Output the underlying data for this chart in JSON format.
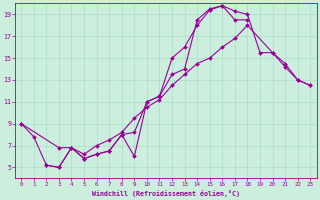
{
  "xlabel": "Windchill (Refroidissement éolien,°C)",
  "background_color": "#cceedd",
  "line_color": "#990099",
  "grid_color": "#aaddcc",
  "xlim": [
    -0.5,
    23.5
  ],
  "ylim": [
    4,
    20
  ],
  "xticks": [
    0,
    1,
    2,
    3,
    4,
    5,
    6,
    7,
    8,
    9,
    10,
    11,
    12,
    13,
    14,
    15,
    16,
    17,
    18,
    19,
    20,
    21,
    22,
    23
  ],
  "yticks": [
    5,
    7,
    9,
    11,
    13,
    15,
    17,
    19
  ],
  "series1_x": [
    0,
    1,
    2,
    3,
    4,
    5,
    6,
    7,
    8,
    9,
    10,
    11,
    12,
    13,
    14,
    15,
    16,
    17,
    18
  ],
  "series1_y": [
    9.0,
    7.8,
    5.2,
    5.0,
    6.8,
    5.8,
    6.2,
    6.5,
    8.0,
    6.0,
    11.0,
    11.5,
    13.5,
    14.0,
    18.5,
    19.5,
    19.8,
    18.5,
    18.5
  ],
  "series2_x": [
    0,
    3,
    4,
    5,
    6,
    7,
    8,
    9,
    10,
    11,
    12,
    13,
    14,
    15,
    16,
    17,
    18,
    20,
    21,
    22,
    23
  ],
  "series2_y": [
    9.0,
    6.8,
    6.8,
    6.2,
    7.0,
    7.5,
    8.2,
    9.5,
    10.5,
    11.2,
    12.5,
    13.5,
    14.5,
    15.0,
    16.0,
    16.8,
    18.0,
    15.5,
    14.5,
    13.0,
    12.5
  ],
  "series3_x": [
    2,
    3,
    4,
    5,
    6,
    7,
    8,
    9,
    10,
    11,
    12,
    13,
    14,
    15,
    16,
    17,
    18,
    19,
    20,
    21,
    22,
    23
  ],
  "series3_y": [
    5.2,
    5.0,
    6.8,
    5.8,
    6.2,
    6.5,
    8.0,
    8.2,
    11.0,
    11.5,
    15.0,
    16.0,
    18.0,
    19.4,
    19.8,
    19.3,
    19.0,
    15.5,
    15.5,
    14.2,
    13.0,
    12.5
  ]
}
